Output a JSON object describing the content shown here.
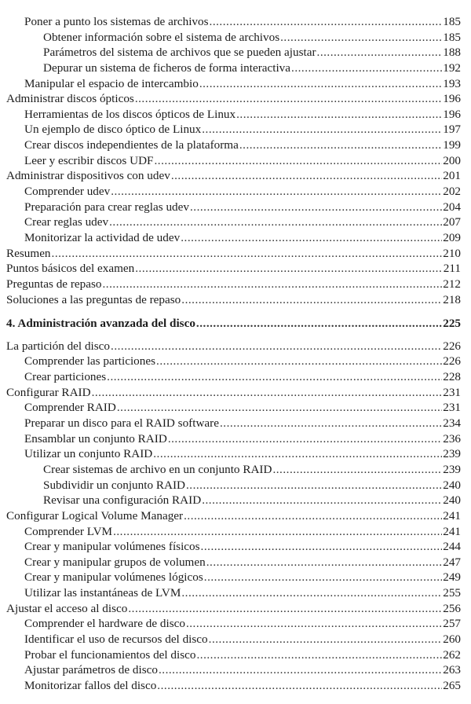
{
  "toc": [
    {
      "level": 1,
      "title": "Poner a punto los sistemas de archivos",
      "page": "185"
    },
    {
      "level": 2,
      "title": "Obtener información sobre el sistema de archivos",
      "page": "185"
    },
    {
      "level": 2,
      "title": "Parámetros del sistema de archivos que se pueden ajustar",
      "page": "188"
    },
    {
      "level": 2,
      "title": "Depurar un sistema de ficheros de forma interactiva",
      "page": "192"
    },
    {
      "level": 1,
      "title": "Manipular el espacio de intercambio",
      "page": "193"
    },
    {
      "level": 0,
      "title": "Administrar discos ópticos",
      "page": "196"
    },
    {
      "level": 1,
      "title": "Herramientas de los discos ópticos de Linux",
      "page": "196"
    },
    {
      "level": 1,
      "title": "Un ejemplo de disco óptico de Linux",
      "page": "197"
    },
    {
      "level": 1,
      "title": "Crear discos independientes de la plataforma",
      "page": "199"
    },
    {
      "level": 1,
      "title": "Leer y escribir discos UDF",
      "page": "200"
    },
    {
      "level": 0,
      "title": "Administrar dispositivos con udev",
      "page": "201"
    },
    {
      "level": 1,
      "title": "Comprender udev",
      "page": "202"
    },
    {
      "level": 1,
      "title": "Preparación para crear reglas udev",
      "page": "204"
    },
    {
      "level": 1,
      "title": "Crear reglas udev",
      "page": "207"
    },
    {
      "level": 1,
      "title": "Monitorizar la actividad de udev",
      "page": "209"
    },
    {
      "level": 0,
      "title": "Resumen",
      "page": "210"
    },
    {
      "level": 0,
      "title": "Puntos básicos del examen",
      "page": "211"
    },
    {
      "level": 0,
      "title": "Preguntas de repaso",
      "page": "212"
    },
    {
      "level": 0,
      "title": "Soluciones a las preguntas de repaso",
      "page": "218"
    },
    {
      "level": "chapter",
      "title": "4. Administración avanzada del disco",
      "page": "225"
    },
    {
      "level": 0,
      "title": "La partición del disco",
      "page": "226"
    },
    {
      "level": 1,
      "title": "Comprender las particiones",
      "page": "226"
    },
    {
      "level": 1,
      "title": "Crear particiones",
      "page": "228"
    },
    {
      "level": 0,
      "title": "Configurar RAID",
      "page": "231"
    },
    {
      "level": 1,
      "title": "Comprender RAID",
      "page": "231"
    },
    {
      "level": 1,
      "title": "Preparar un disco para el RAID software",
      "page": "234"
    },
    {
      "level": 1,
      "title": "Ensamblar un conjunto RAID",
      "page": "236"
    },
    {
      "level": 1,
      "title": "Utilizar un conjunto RAID",
      "page": "239"
    },
    {
      "level": 2,
      "title": "Crear sistemas de archivo en un conjunto RAID",
      "page": "239"
    },
    {
      "level": 2,
      "title": "Subdividir un conjunto RAID",
      "page": "240"
    },
    {
      "level": 2,
      "title": "Revisar una configuración RAID",
      "page": "240"
    },
    {
      "level": 0,
      "title": "Configurar Logical Volume Manager",
      "page": "241"
    },
    {
      "level": 1,
      "title": "Comprender LVM",
      "page": "241"
    },
    {
      "level": 1,
      "title": "Crear y manipular volúmenes físicos",
      "page": "244"
    },
    {
      "level": 1,
      "title": "Crear y manipular grupos de volumen",
      "page": "247"
    },
    {
      "level": 1,
      "title": "Crear y manipular volúmenes lógicos",
      "page": "249"
    },
    {
      "level": 1,
      "title": "Utilizar las instantáneas de LVM",
      "page": "255"
    },
    {
      "level": 0,
      "title": "Ajustar el acceso al disco",
      "page": "256"
    },
    {
      "level": 1,
      "title": "Comprender el hardware de disco",
      "page": "257"
    },
    {
      "level": 1,
      "title": "Identificar el uso de recursos del disco",
      "page": "260"
    },
    {
      "level": 1,
      "title": "Probar el funcionamientos del disco",
      "page": "262"
    },
    {
      "level": 1,
      "title": "Ajustar parámetros de disco",
      "page": "263"
    },
    {
      "level": 1,
      "title": "Monitorizar fallos del disco",
      "page": "265"
    }
  ]
}
